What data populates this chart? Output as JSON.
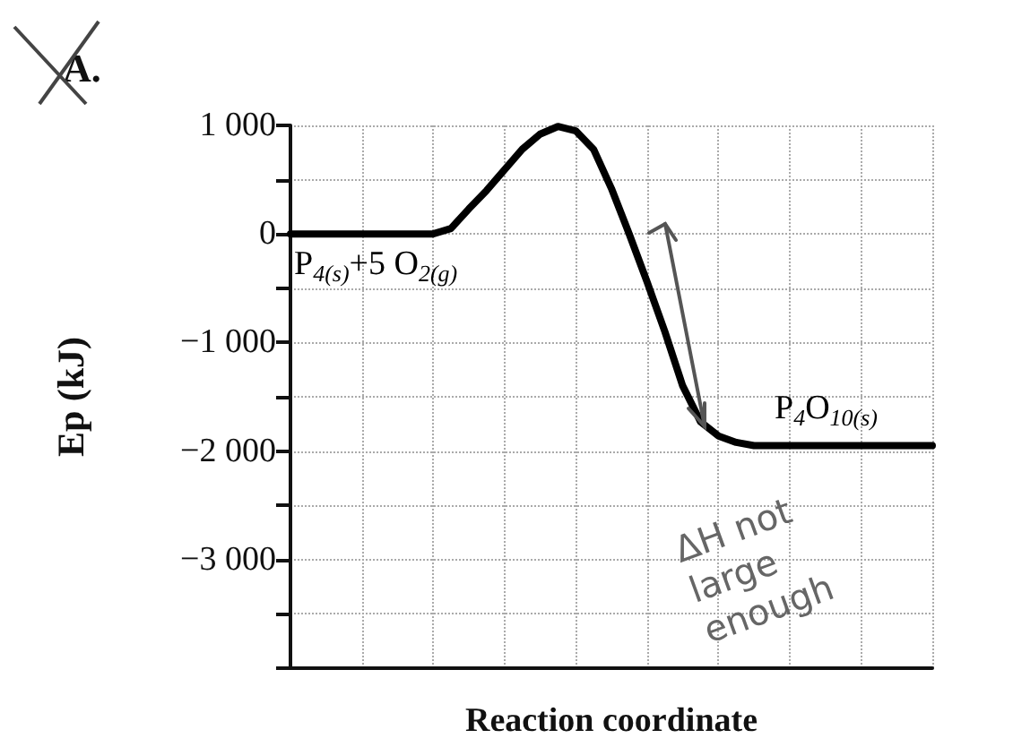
{
  "chart_data": {
    "type": "line",
    "title": "A.",
    "xlabel": "Reaction coordinate",
    "ylabel": "Ep (kJ)",
    "categories": [
      null,
      null,
      null,
      null,
      null,
      null,
      null,
      null,
      null,
      null,
      null,
      null,
      null,
      null,
      null,
      null,
      null,
      null,
      null,
      null,
      null,
      null,
      null,
      null,
      null,
      null,
      null,
      null,
      null,
      null,
      null,
      null,
      null,
      null,
      null,
      null,
      null
    ],
    "series": [
      {
        "color": "#000000",
        "values": [
          0,
          0,
          0,
          0,
          0,
          0,
          0,
          0,
          0,
          50,
          230,
          400,
          590,
          780,
          920,
          990,
          950,
          780,
          420,
          0,
          -440,
          -900,
          -1400,
          -1730,
          -1860,
          -1920,
          -1950,
          -1950,
          -1950,
          -1950,
          -1950,
          -1950,
          -1950,
          -1950,
          -1950,
          -1950,
          -1950
        ]
      }
    ],
    "ylim": [
      -4000,
      1000
    ],
    "yticks": [
      {
        "value": 1000,
        "label": "1 000"
      },
      {
        "value": 500,
        "label": null
      },
      0,
      {
        "value": -500,
        "label": null
      },
      {
        "value": -1000,
        "label": "−1 000"
      },
      {
        "value": -1500,
        "label": null
      },
      {
        "value": -2000,
        "label": "−2 000"
      },
      {
        "value": -2500,
        "label": null
      },
      {
        "value": -3000,
        "label": "−3 000"
      },
      {
        "value": -3500,
        "label": null
      },
      {
        "value": -4000,
        "label": null
      }
    ],
    "tick_labels": "y",
    "grid": true,
    "marker": "none",
    "line_style": "solid",
    "annotations": [
      {
        "text": "P$_{4(s)}$+5 O$_{2(g)}$",
        "y": 0
      },
      {
        "text": "P$_{4}$O$_{10(s)}$",
        "y": -1950
      },
      "ΔH not large enough"
    ]
  }
}
